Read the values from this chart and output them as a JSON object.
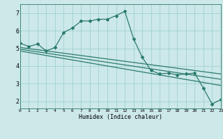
{
  "xlabel": "Humidex (Indice chaleur)",
  "bg_color": "#cce8e8",
  "line_color": "#2a7a6a",
  "marker": "D",
  "markersize": 2.0,
  "linewidth": 0.9,
  "xlim": [
    0,
    23
  ],
  "ylim": [
    1.6,
    7.5
  ],
  "xticks": [
    0,
    1,
    2,
    3,
    4,
    5,
    6,
    7,
    8,
    9,
    10,
    11,
    12,
    13,
    14,
    15,
    16,
    17,
    18,
    19,
    20,
    21,
    22,
    23
  ],
  "yticks": [
    2,
    3,
    4,
    5,
    6,
    7
  ],
  "grid_color": "#99cccc",
  "main_x": [
    0,
    1,
    2,
    3,
    4,
    5,
    6,
    7,
    8,
    9,
    10,
    11,
    12,
    13,
    14,
    15,
    16,
    17,
    18,
    19,
    20,
    21,
    22,
    23
  ],
  "main_y": [
    5.3,
    5.1,
    5.25,
    4.85,
    5.05,
    5.9,
    6.15,
    6.55,
    6.55,
    6.65,
    6.65,
    6.85,
    7.1,
    5.55,
    4.5,
    3.75,
    3.55,
    3.6,
    3.5,
    3.55,
    3.6,
    2.75,
    1.85,
    2.1
  ],
  "trend_lines": [
    {
      "x": [
        0,
        23
      ],
      "y": [
        5.05,
        3.55
      ]
    },
    {
      "x": [
        0,
        23
      ],
      "y": [
        4.95,
        3.25
      ]
    },
    {
      "x": [
        0,
        23
      ],
      "y": [
        4.85,
        2.9
      ]
    }
  ]
}
